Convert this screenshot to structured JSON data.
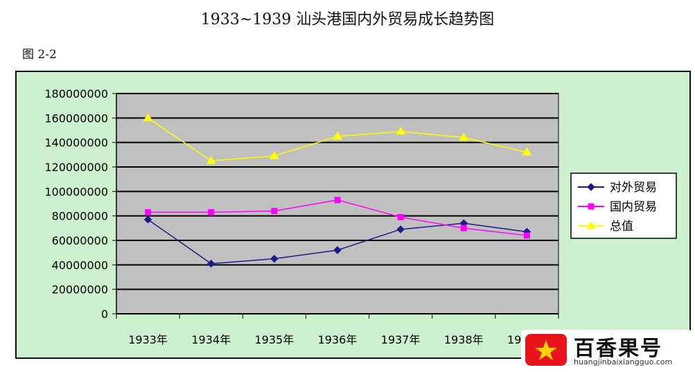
{
  "page": {
    "title": "1933~1939 汕头港国内外贸易成长趋势图",
    "figure_label": "图 2-2"
  },
  "chart_data": {
    "type": "line",
    "categories": [
      "1933年",
      "1934年",
      "1935年",
      "1936年",
      "1937年",
      "1938年",
      "1939年"
    ],
    "series": [
      {
        "name": "对外贸易",
        "color": "#1a1a8c",
        "marker": "diamond",
        "values": [
          77000000,
          41000000,
          45000000,
          52000000,
          69000000,
          74000000,
          67000000
        ]
      },
      {
        "name": "国内贸易",
        "color": "#ff00ff",
        "marker": "square",
        "values": [
          83000000,
          83000000,
          84000000,
          93000000,
          79000000,
          70000000,
          64000000
        ]
      },
      {
        "name": "总值",
        "color": "#ffff00",
        "marker": "triangle",
        "values": [
          160000000,
          125000000,
          129000000,
          145000000,
          149000000,
          144000000,
          132000000
        ]
      }
    ],
    "ylim": [
      0,
      180000000
    ],
    "yticks": [
      "180000000",
      "160000000",
      "140000000",
      "120000000",
      "100000000",
      "80000000",
      "60000000",
      "40000000",
      "20000000",
      "0"
    ],
    "grid": true,
    "legend_position": "right",
    "plot_background": "#c0c0c0",
    "chart_background": "#cdf0cf"
  },
  "watermark": {
    "name": "百香果号",
    "url": "huangjinbaixiangguo.com"
  }
}
